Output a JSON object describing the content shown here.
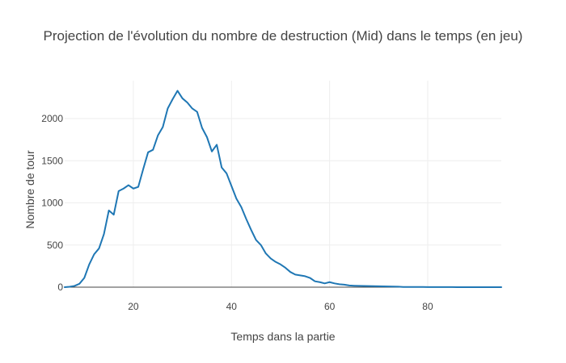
{
  "chart_data": {
    "type": "line",
    "title": "Projection de l'évolution du nombre de destruction (Mid) dans le temps (en jeu)",
    "xlabel": "Temps dans la partie",
    "ylabel": "Nombre de tour",
    "xlim": [
      6,
      95
    ],
    "ylim": [
      0,
      2450
    ],
    "x_ticks": [
      20,
      40,
      60,
      80
    ],
    "y_ticks": [
      0,
      500,
      1000,
      1500,
      2000
    ],
    "grid": true,
    "line_color": "#1f77b4",
    "series": [
      {
        "x": [
          6,
          7,
          8,
          9,
          10,
          11,
          12,
          13,
          14,
          15,
          16,
          17,
          18,
          19,
          20,
          21,
          22,
          23,
          24,
          25,
          26,
          27,
          28,
          29,
          30,
          31,
          32,
          33,
          34,
          35,
          36,
          37,
          38,
          39,
          40,
          41,
          42,
          43,
          44,
          45,
          46,
          47,
          48,
          49,
          50,
          51,
          52,
          53,
          54,
          55,
          56,
          57,
          58,
          59,
          60,
          61,
          62,
          63,
          64,
          65,
          66,
          67,
          68,
          69,
          70,
          71,
          72,
          73,
          74,
          75,
          76,
          77,
          78,
          79,
          80,
          81,
          82,
          83,
          84,
          85,
          86,
          87,
          88,
          89,
          90,
          91,
          92,
          93,
          94,
          95
        ],
        "y": [
          0,
          5,
          15,
          40,
          110,
          270,
          390,
          460,
          630,
          910,
          860,
          1140,
          1170,
          1210,
          1170,
          1190,
          1400,
          1600,
          1630,
          1800,
          1900,
          2120,
          2230,
          2330,
          2240,
          2190,
          2120,
          2080,
          1890,
          1780,
          1610,
          1690,
          1420,
          1350,
          1200,
          1050,
          950,
          810,
          680,
          560,
          500,
          400,
          340,
          300,
          270,
          230,
          180,
          150,
          140,
          130,
          110,
          70,
          60,
          45,
          60,
          45,
          35,
          30,
          20,
          17,
          15,
          14,
          13,
          12,
          11,
          10,
          8,
          7,
          6,
          3,
          2,
          2,
          2,
          2,
          1,
          1,
          1,
          1,
          1,
          1,
          0,
          0,
          0,
          0,
          0,
          0,
          0,
          0,
          0,
          0
        ]
      }
    ]
  }
}
